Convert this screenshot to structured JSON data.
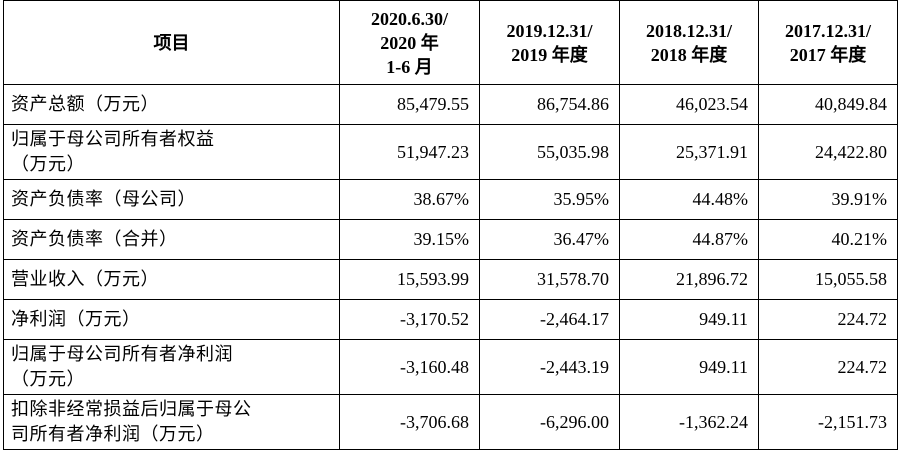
{
  "table": {
    "headers": [
      "项目",
      "2020.6.30/\n2020 年\n1-6 月",
      "2019.12.31/\n2019 年度",
      "2018.12.31/\n2018 年度",
      "2017.12.31/\n2017 年度"
    ],
    "rows": [
      {
        "label": "资产总额（万元）",
        "values": [
          "85,479.55",
          "86,754.86",
          "46,023.54",
          "40,849.84"
        ]
      },
      {
        "label": "归属于母公司所有者权益\n（万元）",
        "values": [
          "51,947.23",
          "55,035.98",
          "25,371.91",
          "24,422.80"
        ]
      },
      {
        "label": "资产负债率（母公司）",
        "values": [
          "38.67%",
          "35.95%",
          "44.48%",
          "39.91%"
        ]
      },
      {
        "label": "资产负债率（合并）",
        "values": [
          "39.15%",
          "36.47%",
          "44.87%",
          "40.21%"
        ]
      },
      {
        "label": "营业收入（万元）",
        "values": [
          "15,593.99",
          "31,578.70",
          "21,896.72",
          "15,055.58"
        ]
      },
      {
        "label": "净利润（万元）",
        "values": [
          "-3,170.52",
          "-2,464.17",
          "949.11",
          "224.72"
        ]
      },
      {
        "label": "归属于母公司所有者净利润\n（万元）",
        "values": [
          "-3,160.48",
          "-2,443.19",
          "949.11",
          "224.72"
        ]
      },
      {
        "label": "扣除非经常损益后归属于母公\n司所有者净利润（万元）",
        "values": [
          "-3,706.68",
          "-6,296.00",
          "-1,362.24",
          "-2,151.73"
        ]
      }
    ]
  }
}
